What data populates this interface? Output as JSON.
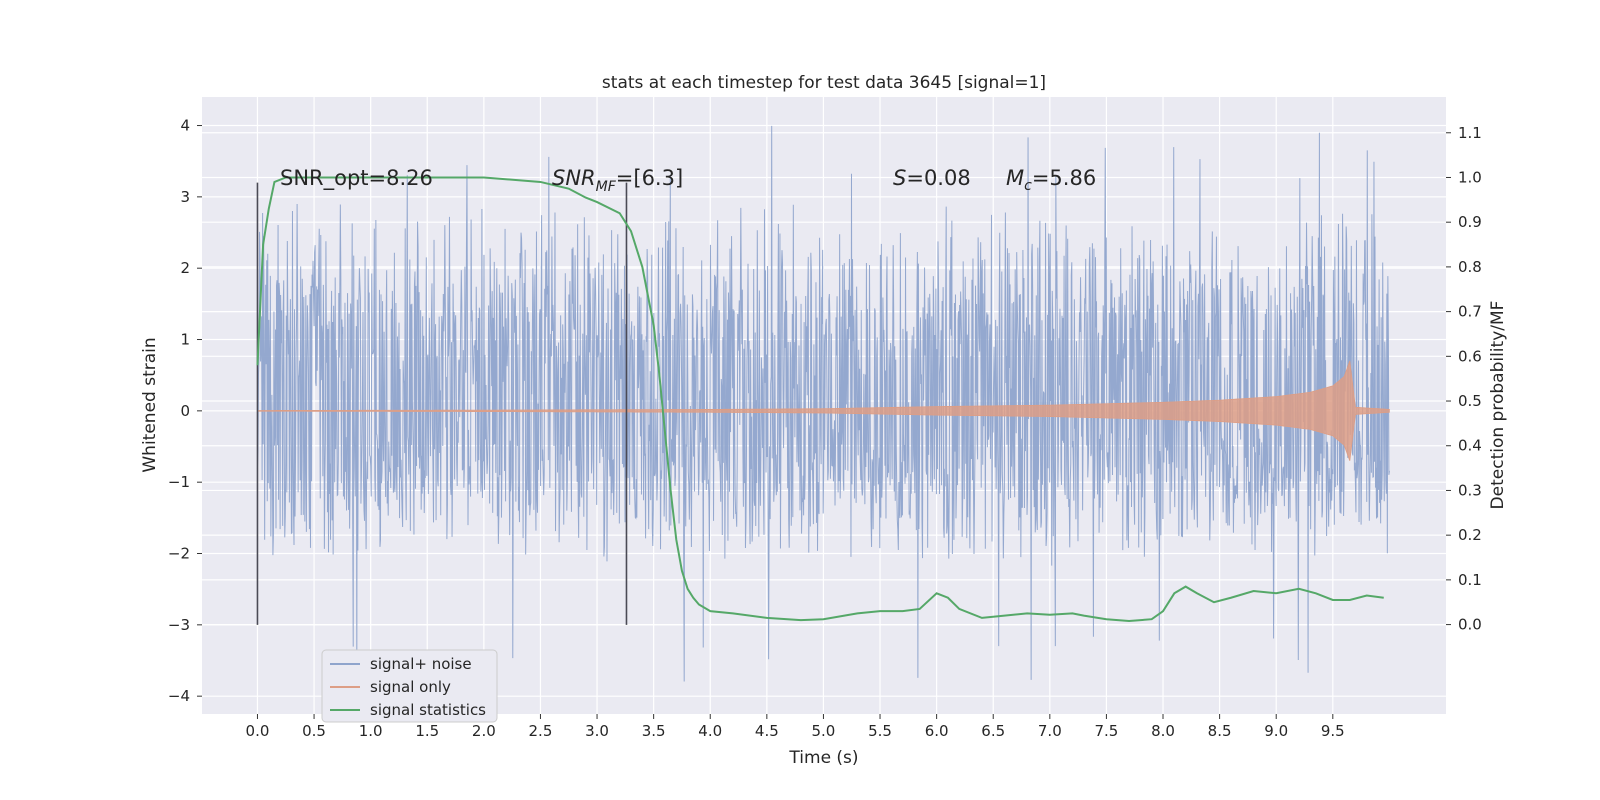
{
  "chart_data": {
    "type": "line",
    "title": "stats at each timestep for test data 3645 [signal=1]",
    "xlabel": "Time (s)",
    "ylabel_left": "Whitened strain",
    "ylabel_right": "Detection probability/MF",
    "xlim": [
      -0.49,
      10.5
    ],
    "ylim_left": [
      -4.25,
      4.4
    ],
    "ylim_right": [
      -0.2,
      1.18
    ],
    "x_ticks": [
      "0.0",
      "0.5",
      "1.0",
      "1.5",
      "2.0",
      "2.5",
      "3.0",
      "3.5",
      "4.0",
      "4.5",
      "5.0",
      "5.5",
      "6.0",
      "6.5",
      "7.0",
      "7.5",
      "8.0",
      "8.5",
      "9.0",
      "9.5"
    ],
    "y_ticks_left": [
      "4",
      "3",
      "2",
      "1",
      "0",
      "−1",
      "−2",
      "−3",
      "−4"
    ],
    "y_ticks_right": [
      "1.1",
      "1.0",
      "0.9",
      "0.8",
      "0.7",
      "0.6",
      "0.5",
      "0.4",
      "0.3",
      "0.2",
      "0.1",
      "0.0"
    ],
    "grid": true,
    "legend_position": "lower-left",
    "annotations": {
      "snr_opt": "SNR_opt=8.26",
      "snr_mf_main": "SNR",
      "snr_mf_sub": "MF",
      "snr_mf_rest": "=[6.3]",
      "s_main": "S",
      "s_rest": "=0.08",
      "mc_main": "M",
      "mc_sub": "c",
      "mc_rest": "=5.86"
    },
    "vertical_markers_x": [
      0.0,
      3.26
    ],
    "series": [
      {
        "name": "signal+ noise",
        "color": "#8fa4cc",
        "axis": "left",
        "description_envelope": {
          "t_range": [
            0.0,
            10.0
          ],
          "typical_max": 3.0,
          "typical_min": -2.2,
          "peak_max": 4.05,
          "peak_min": -3.85
        }
      },
      {
        "name": "signal only",
        "color": "#dd9e86",
        "axis": "left",
        "envelope": {
          "t": [
            0.0,
            2.0,
            4.0,
            5.0,
            6.0,
            7.0,
            8.0,
            8.5,
            9.0,
            9.3,
            9.5,
            9.6,
            9.65,
            9.7,
            10.0
          ],
          "amp": [
            0.005,
            0.01,
            0.02,
            0.03,
            0.06,
            0.08,
            0.12,
            0.15,
            0.2,
            0.26,
            0.35,
            0.48,
            0.7,
            0.05,
            0.02
          ]
        }
      },
      {
        "name": "signal statistics",
        "color": "#55a868",
        "axis": "right",
        "t": [
          0.0,
          0.05,
          0.1,
          0.15,
          0.25,
          0.5,
          1.0,
          1.5,
          2.0,
          2.5,
          2.75,
          2.9,
          3.0,
          3.2,
          3.3,
          3.4,
          3.5,
          3.55,
          3.6,
          3.65,
          3.7,
          3.75,
          3.8,
          3.85,
          3.9,
          4.0,
          4.2,
          4.5,
          4.8,
          5.0,
          5.3,
          5.5,
          5.7,
          5.85,
          6.0,
          6.1,
          6.2,
          6.4,
          6.6,
          6.8,
          7.0,
          7.2,
          7.3,
          7.5,
          7.7,
          7.9,
          8.0,
          8.1,
          8.2,
          8.3,
          8.45,
          8.6,
          8.8,
          9.0,
          9.2,
          9.35,
          9.5,
          9.65,
          9.8,
          9.95
        ],
        "values": [
          0.58,
          0.85,
          0.93,
          0.99,
          1.0,
          1.0,
          1.0,
          1.0,
          1.0,
          0.99,
          0.975,
          0.955,
          0.945,
          0.92,
          0.88,
          0.8,
          0.67,
          0.56,
          0.43,
          0.3,
          0.19,
          0.12,
          0.08,
          0.06,
          0.045,
          0.03,
          0.025,
          0.015,
          0.01,
          0.012,
          0.025,
          0.03,
          0.03,
          0.035,
          0.07,
          0.06,
          0.035,
          0.015,
          0.02,
          0.025,
          0.022,
          0.025,
          0.02,
          0.012,
          0.008,
          0.012,
          0.03,
          0.07,
          0.085,
          0.07,
          0.05,
          0.06,
          0.075,
          0.07,
          0.08,
          0.07,
          0.055,
          0.055,
          0.065,
          0.06
        ]
      }
    ]
  }
}
